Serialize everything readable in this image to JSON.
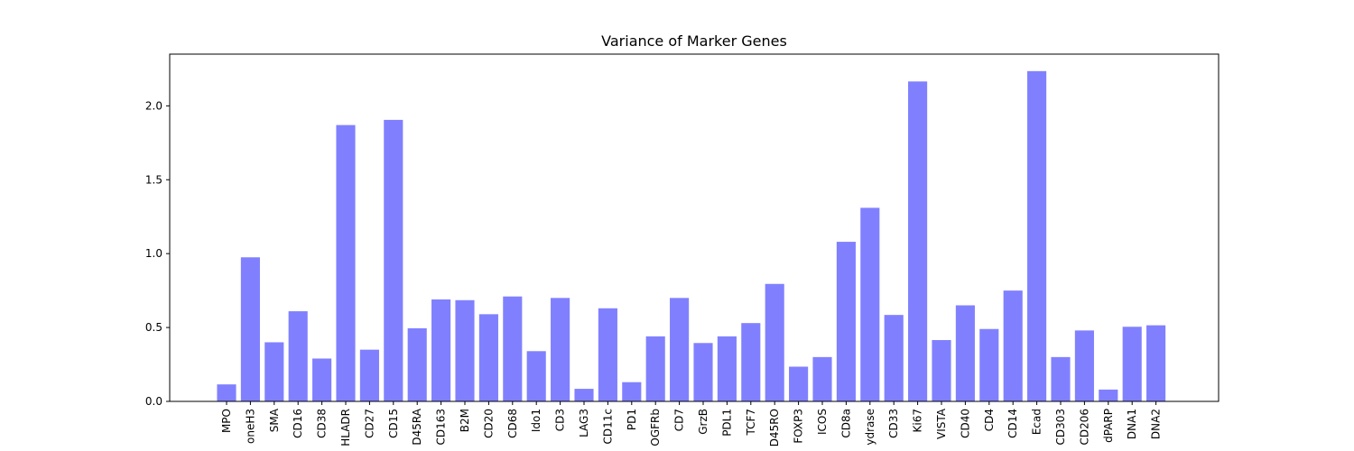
{
  "chart_data": {
    "type": "bar",
    "title": "Variance of Marker Genes",
    "xlabel": "",
    "ylabel": "",
    "ylim": [
      0,
      2.35
    ],
    "yticks": [
      0.0,
      0.5,
      1.0,
      1.5,
      2.0
    ],
    "ytick_labels": [
      "0.0",
      "0.5",
      "1.0",
      "1.5",
      "2.0"
    ],
    "bar_color": "#8080ff",
    "grid": false,
    "categories": [
      "MPO",
      "oneH3",
      "SMA",
      "CD16",
      "CD38",
      "HLADR",
      "CD27",
      "CD15",
      "D45RA",
      "CD163",
      "B2M",
      "CD20",
      "CD68",
      "Ido1",
      "CD3",
      "LAG3",
      "CD11c",
      "PD1",
      "OGFRb",
      "CD7",
      "GrzB",
      "PDL1",
      "TCF7",
      "D45RO",
      "FOXP3",
      "ICOS",
      "CD8a",
      "ydrase",
      "CD33",
      "Ki67",
      "VISTA",
      "CD40",
      "CD4",
      "CD14",
      "Ecad",
      "CD303",
      "CD206",
      "dPARP",
      "DNA1",
      "DNA2"
    ],
    "values": [
      0.115,
      0.975,
      0.4,
      0.61,
      0.29,
      1.87,
      0.35,
      1.905,
      0.495,
      0.69,
      0.685,
      0.59,
      0.71,
      0.34,
      0.7,
      0.085,
      0.63,
      0.13,
      0.44,
      0.7,
      0.395,
      0.44,
      0.53,
      0.795,
      0.235,
      0.3,
      1.08,
      1.31,
      0.585,
      2.165,
      0.415,
      0.65,
      0.49,
      0.75,
      2.235,
      0.3,
      0.48,
      0.08,
      0.505,
      0.515
    ]
  }
}
